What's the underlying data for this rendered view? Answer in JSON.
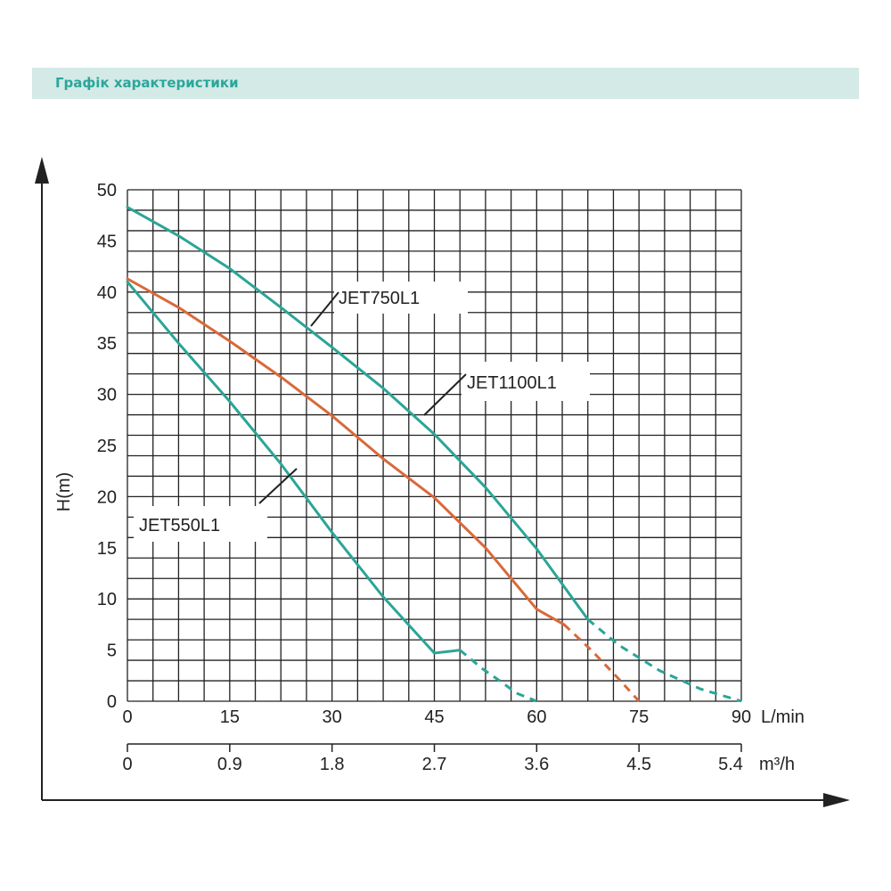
{
  "header": {
    "title": "Графік характеристики"
  },
  "colors": {
    "header_bg": "#d3eae7",
    "header_text": "#2aa79a",
    "teal": "#2ba597",
    "orange": "#d9693a",
    "grid": "#222222"
  },
  "chart_data": {
    "type": "line",
    "title": "",
    "ylabel": "H(m)",
    "xlabel": "L/min",
    "x2label": "m³/h",
    "xlim": [
      0,
      90
    ],
    "ylim": [
      0,
      50
    ],
    "grid": true,
    "xticks": [
      "0",
      "15",
      "30",
      "45",
      "60",
      "75",
      "90"
    ],
    "x2ticks": [
      "0",
      "0.9",
      "1.8",
      "2.7",
      "3.6",
      "4.5",
      "5.4"
    ],
    "yticks": [
      "0",
      "5",
      "10",
      "15",
      "20",
      "25",
      "30",
      "35",
      "40",
      "45",
      "50"
    ],
    "series": [
      {
        "name": "JET750L1",
        "color": "#2ba597",
        "solid": [
          [
            0,
            48.3
          ],
          [
            7.5,
            45.5
          ],
          [
            15,
            42.3
          ],
          [
            22.5,
            38.5
          ],
          [
            30,
            34.6
          ],
          [
            37.5,
            30.6
          ],
          [
            45,
            26.1
          ],
          [
            52.5,
            20.9
          ],
          [
            60,
            14.9
          ],
          [
            67.5,
            8.0
          ]
        ],
        "dashed": [
          [
            67.5,
            8.0
          ],
          [
            72,
            5.5
          ],
          [
            78,
            3.0
          ],
          [
            84,
            1.2
          ],
          [
            90,
            0
          ]
        ],
        "label_x": 33
      },
      {
        "name": "JET1100L1",
        "color": "#d9693a",
        "solid": [
          [
            0,
            41.3
          ],
          [
            7.5,
            38.5
          ],
          [
            15,
            35.2
          ],
          [
            22.5,
            31.7
          ],
          [
            30,
            27.9
          ],
          [
            37.5,
            23.7
          ],
          [
            45,
            19.9
          ],
          [
            52.5,
            15.0
          ],
          [
            60,
            9.0
          ],
          [
            64,
            7.5
          ]
        ],
        "dashed": [
          [
            64,
            7.5
          ],
          [
            68,
            5.0
          ],
          [
            72,
            2.2
          ],
          [
            75,
            0
          ]
        ],
        "label_x": 55
      },
      {
        "name": "JET550L1",
        "color": "#2ba597",
        "solid": [
          [
            0,
            41.0
          ],
          [
            7.5,
            35.0
          ],
          [
            15,
            29.3
          ],
          [
            22.5,
            23.2
          ],
          [
            30,
            16.5
          ],
          [
            37.5,
            10.2
          ],
          [
            45,
            4.7
          ],
          [
            48.75,
            5.0
          ]
        ],
        "dashed": [
          [
            48.75,
            5.0
          ],
          [
            52,
            3.2
          ],
          [
            55,
            1.8
          ],
          [
            57,
            0.8
          ],
          [
            60,
            0
          ]
        ],
        "label_x": 10
      }
    ]
  }
}
